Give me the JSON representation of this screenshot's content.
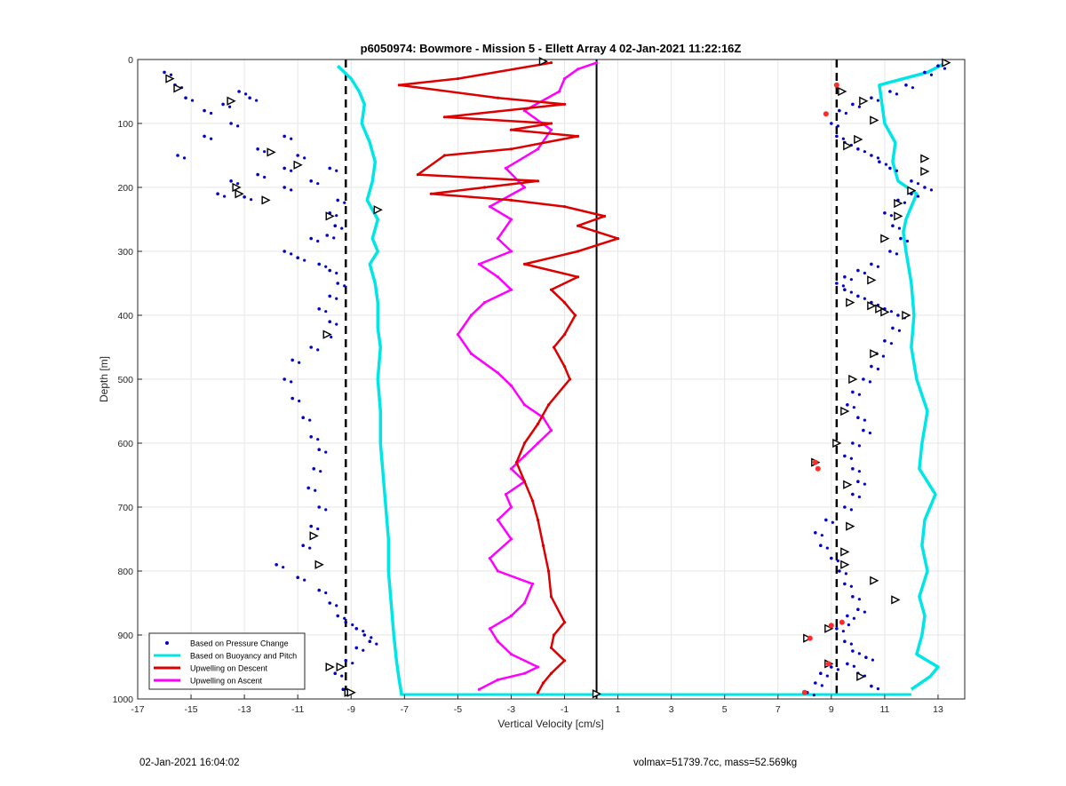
{
  "footer": {
    "timestamp": "02-Jan-2021 16:04:02",
    "info": "volmax=51739.7cc, mass=52.569kg"
  },
  "chart_data": {
    "type": "scatter",
    "title": "p6050974: Bowmore - Mission 5 - Ellett Array 4 02-Jan-2021 11:22:16Z",
    "xlabel": "Vertical Velocity [cm/s]",
    "ylabel": "Depth [m]",
    "xlim": [
      -17,
      14
    ],
    "ylim": [
      1000,
      0
    ],
    "y_reversed": true,
    "xticks": [
      "-17",
      "-15",
      "-13",
      "-11",
      "-9",
      "-7",
      "-5",
      "-3",
      "-1",
      "1",
      "3",
      "5",
      "7",
      "9",
      "11",
      "13"
    ],
    "yticks": [
      "0",
      "100",
      "200",
      "300",
      "400",
      "500",
      "600",
      "700",
      "800",
      "900",
      "1000"
    ],
    "grid": true,
    "legend_position": "bottom-left",
    "legend": [
      {
        "label": "Based on Pressure Change",
        "color": "#0000c8",
        "style": "dots"
      },
      {
        "label": "Based on Buoyancy and Pitch",
        "color": "#00e6e6",
        "style": "line"
      },
      {
        "label": "Upwelling on Descent",
        "color": "#dc0000",
        "style": "line-dots"
      },
      {
        "label": "Upwelling on Ascent",
        "color": "#ff00ff",
        "style": "line-dots"
      }
    ],
    "reference_lines": {
      "dashed_x": [
        -9.2,
        9.2
      ],
      "solid_x": [
        0.2
      ]
    },
    "series": [
      {
        "name": "Based on Buoyancy and Pitch",
        "color": "#00e6e6",
        "descent_x": [
          -9.5,
          -9.0,
          -8.7,
          -8.5,
          -8.6,
          -8.3,
          -8.1,
          -8.2,
          -8.4,
          -8.0,
          -8.2,
          -8.0,
          -8.3,
          -8.1,
          -8.0,
          -8.0,
          -7.9,
          -8.0,
          -7.9,
          -7.9,
          -7.8,
          -7.7,
          -7.6,
          -7.6,
          -7.5,
          -7.4,
          -7.3,
          -7.2,
          -7.1
        ],
        "descent_y": [
          10,
          30,
          50,
          70,
          100,
          130,
          160,
          190,
          220,
          250,
          280,
          300,
          320,
          350,
          380,
          420,
          450,
          500,
          550,
          600,
          650,
          700,
          750,
          800,
          850,
          900,
          940,
          970,
          995
        ],
        "ascent_x": [
          12.0,
          12.7,
          13.0,
          12.2,
          12.4,
          12.5,
          12.3,
          12.6,
          12.4,
          12.5,
          12.9,
          12.3,
          12.4,
          12.6,
          12.2,
          12.0,
          12.1,
          12.0,
          11.8,
          11.7,
          11.8,
          12.2,
          11.5,
          11.3,
          11.4,
          11.0,
          10.9,
          10.8,
          12.6,
          13.3
        ],
        "ascent_y": [
          985,
          965,
          950,
          930,
          900,
          870,
          840,
          800,
          760,
          720,
          680,
          640,
          600,
          550,
          500,
          450,
          400,
          350,
          300,
          270,
          250,
          210,
          190,
          160,
          130,
          100,
          70,
          40,
          20,
          5
        ]
      },
      {
        "name": "Upwelling on Descent",
        "color": "#dc0000",
        "x": [
          -1.5,
          -5.0,
          -7.2,
          -3.5,
          -1.0,
          -5.5,
          -1.5,
          -3.0,
          -0.5,
          -3.0,
          -5.5,
          -6.5,
          -2.0,
          -4.0,
          -6.0,
          -3.0,
          -1.0,
          0.5,
          -0.5,
          1.0,
          -0.5,
          -2.5,
          -0.5,
          -1.5,
          -1.0,
          -0.6,
          -1.0,
          -1.4,
          -1.0,
          -0.8,
          -1.6,
          -2.0,
          -2.5,
          -2.8,
          -2.5,
          -2.2,
          -2.0,
          -1.8,
          -1.6,
          -1.5,
          -1.0,
          -1.4,
          -1.5,
          -1.0,
          -1.5,
          -1.8,
          -2.0
        ],
        "y": [
          5,
          30,
          40,
          60,
          70,
          90,
          100,
          110,
          120,
          140,
          150,
          180,
          190,
          200,
          210,
          220,
          230,
          245,
          260,
          280,
          300,
          320,
          340,
          360,
          380,
          400,
          430,
          450,
          480,
          500,
          540,
          570,
          600,
          630,
          660,
          690,
          720,
          760,
          800,
          840,
          880,
          900,
          920,
          940,
          960,
          975,
          990
        ]
      },
      {
        "name": "Upwelling on Ascent",
        "color": "#ff00ff",
        "x": [
          -4.2,
          -3.5,
          -2.5,
          -2.0,
          -3.0,
          -3.5,
          -3.8,
          -3.0,
          -2.5,
          -2.2,
          -3.5,
          -3.8,
          -3.0,
          -3.5,
          -3.0,
          -3.2,
          -2.5,
          -3.0,
          -2.5,
          -2.0,
          -1.5,
          -1.8,
          -2.5,
          -3.0,
          -3.5,
          -4.5,
          -5.0,
          -4.5,
          -4.0,
          -3.0,
          -3.5,
          -4.2,
          -3.0,
          -3.5,
          -3.0,
          -3.8,
          -2.5,
          -3.2,
          -2.0,
          -1.5,
          -2.5,
          -1.2,
          -1.0,
          -0.5,
          0.2
        ],
        "y": [
          985,
          970,
          960,
          950,
          930,
          910,
          890,
          870,
          850,
          820,
          800,
          780,
          750,
          720,
          700,
          680,
          660,
          640,
          620,
          600,
          580,
          560,
          540,
          510,
          490,
          460,
          430,
          400,
          380,
          360,
          340,
          320,
          300,
          280,
          250,
          230,
          200,
          170,
          140,
          110,
          80,
          50,
          30,
          15,
          5
        ]
      },
      {
        "name": "Based on Pressure Change",
        "color": "#0000c8",
        "descent_x": [
          -16.0,
          -15.6,
          -15.2,
          -14.5,
          -13.8,
          -13.2,
          -12.8,
          -13.5,
          -14.5,
          -15.5,
          -12.5,
          -11.5,
          -11.0,
          -11.5,
          -12.5,
          -13.5,
          -14.0,
          -13.0,
          -11.5,
          -10.5,
          -9.8,
          -9.5,
          -9.8,
          -9.6,
          -9.9,
          -10.5,
          -11.5,
          -11.0,
          -10.2,
          -9.8,
          -9.5,
          -9.8,
          -10.2,
          -9.8,
          -10.0,
          -10.5,
          -11.2,
          -11.5,
          -11.2,
          -10.8,
          -10.5,
          -10.2,
          -10.4,
          -10.6,
          -10.2,
          -10.5,
          -10.8,
          -11.8,
          -11.0,
          -10.2,
          -9.8,
          -9.5,
          -9.2,
          -8.8,
          -8.5,
          -8.3,
          -8.8,
          -9.2,
          -9.6,
          -9.3
        ],
        "descent_y": [
          20,
          40,
          60,
          80,
          70,
          50,
          60,
          100,
          120,
          150,
          140,
          120,
          150,
          170,
          180,
          190,
          210,
          215,
          200,
          190,
          170,
          220,
          240,
          260,
          275,
          280,
          300,
          310,
          320,
          330,
          350,
          370,
          390,
          410,
          430,
          450,
          470,
          500,
          530,
          560,
          590,
          610,
          640,
          670,
          700,
          730,
          760,
          790,
          810,
          830,
          850,
          870,
          880,
          890,
          900,
          910,
          920,
          940,
          960,
          985
        ],
        "ascent_x": [
          8.1,
          8.4,
          8.6,
          9.0,
          9.6,
          10.0,
          10.5,
          10.3,
          9.8,
          9.5,
          9.2,
          9.4,
          9.6,
          10.0,
          9.8,
          9.5,
          9.3,
          9.0,
          8.6,
          8.4,
          8.8,
          9.5,
          9.8,
          10.0,
          9.8,
          9.5,
          9.8,
          10.2,
          10.0,
          9.6,
          9.8,
          10.2,
          10.5,
          10.7,
          11.0,
          11.3,
          11.5,
          11.0,
          10.5,
          10.0,
          9.5,
          9.2,
          9.5,
          10.0,
          10.5,
          11.2,
          11.6,
          11.3,
          11.0,
          11.5,
          12.0,
          12.5,
          12.0,
          11.2,
          10.8,
          10.5,
          10.0,
          9.5,
          9.2,
          9.0,
          9.3,
          9.8,
          10.5,
          11.2,
          11.8,
          12.5,
          13.0
        ],
        "ascent_y": [
          990,
          975,
          960,
          950,
          945,
          960,
          980,
          935,
          925,
          910,
          890,
          880,
          870,
          860,
          840,
          820,
          800,
          780,
          760,
          740,
          720,
          700,
          680,
          660,
          640,
          620,
          600,
          580,
          560,
          540,
          520,
          500,
          480,
          460,
          440,
          420,
          400,
          390,
          380,
          370,
          360,
          350,
          340,
          330,
          320,
          300,
          280,
          260,
          240,
          220,
          210,
          200,
          190,
          170,
          160,
          150,
          140,
          130,
          120,
          100,
          80,
          70,
          60,
          50,
          40,
          20,
          10
        ]
      }
    ],
    "markers": {
      "triangles_x": [
        -15.8,
        -15.5,
        -13.5,
        -12.0,
        -11.0,
        -13.3,
        -13.2,
        -12.2,
        -9.8,
        -8.0,
        -9.9,
        -10.4,
        -10.2,
        -9.4,
        -9.1,
        0.2,
        -1.8,
        9.4,
        10.2,
        10.6,
        10.0,
        9.6,
        12.5,
        12.5,
        12.0,
        11.5,
        11.5,
        11.0,
        10.5,
        9.7,
        10.5,
        10.8,
        11.0,
        11.8,
        10.6,
        9.8,
        9.5,
        9.2,
        8.4,
        9.6,
        9.7,
        9.5,
        9.5,
        10.6,
        11.4,
        8.9,
        8.1,
        8.9,
        10.1,
        -9.8,
        -9.0,
        13.3
      ],
      "triangles_y": [
        30,
        45,
        65,
        145,
        165,
        200,
        210,
        220,
        245,
        235,
        430,
        745,
        790,
        950,
        990,
        992,
        3,
        50,
        65,
        95,
        125,
        135,
        155,
        175,
        205,
        225,
        245,
        280,
        345,
        380,
        385,
        390,
        395,
        400,
        460,
        500,
        550,
        600,
        630,
        665,
        730,
        770,
        790,
        815,
        845,
        890,
        905,
        945,
        965,
        950,
        990,
        5
      ],
      "red_dots_x": [
        9.2,
        8.8,
        9.4,
        8.4,
        8.5,
        8.2,
        9.0,
        8.9,
        8.0
      ],
      "red_dots_y": [
        40,
        85,
        880,
        630,
        640,
        905,
        885,
        945,
        990
      ]
    }
  }
}
